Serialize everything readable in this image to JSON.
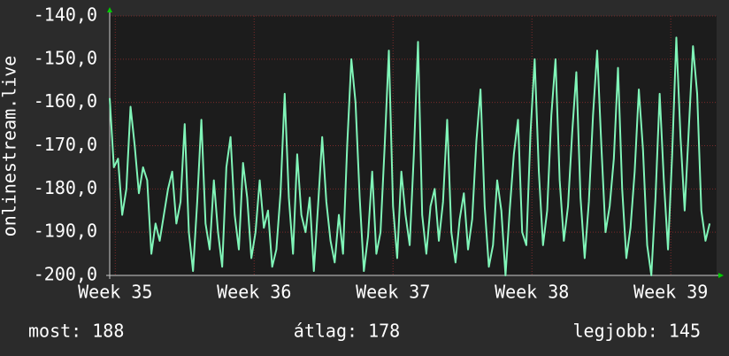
{
  "chart_data": {
    "type": "line",
    "y_label": "onlinestream.live",
    "x": [
      34.96,
      34.99,
      35.02,
      35.05,
      35.08,
      35.11,
      35.14,
      35.17,
      35.2,
      35.23,
      35.26,
      35.29,
      35.32,
      35.35,
      35.38,
      35.41,
      35.44,
      35.47,
      35.5,
      35.53,
      35.56,
      35.59,
      35.62,
      35.65,
      35.68,
      35.71,
      35.74,
      35.77,
      35.8,
      35.83,
      35.86,
      35.89,
      35.92,
      35.95,
      35.98,
      36.01,
      36.04,
      36.07,
      36.1,
      36.13,
      36.16,
      36.19,
      36.22,
      36.25,
      36.28,
      36.31,
      36.34,
      36.37,
      36.4,
      36.43,
      36.46,
      36.49,
      36.52,
      36.55,
      36.58,
      36.61,
      36.64,
      36.67,
      36.7,
      36.73,
      36.76,
      36.79,
      36.82,
      36.85,
      36.88,
      36.91,
      36.94,
      36.97,
      37.0,
      37.03,
      37.06,
      37.09,
      37.12,
      37.15,
      37.18,
      37.21,
      37.24,
      37.27,
      37.3,
      37.33,
      37.36,
      37.39,
      37.42,
      37.45,
      37.48,
      37.51,
      37.54,
      37.57,
      37.6,
      37.63,
      37.66,
      37.69,
      37.72,
      37.75,
      37.78,
      37.81,
      37.84,
      37.87,
      37.9,
      37.93,
      37.96,
      37.99,
      38.02,
      38.05,
      38.08,
      38.11,
      38.14,
      38.17,
      38.2,
      38.23,
      38.26,
      38.29,
      38.32,
      38.35,
      38.38,
      38.41,
      38.44,
      38.47,
      38.5,
      38.53,
      38.56,
      38.59,
      38.62,
      38.65,
      38.68,
      38.71,
      38.74,
      38.77,
      38.8,
      38.83,
      38.86,
      38.89,
      38.92,
      38.95,
      38.98,
      39.01,
      39.04,
      39.07,
      39.1,
      39.13,
      39.16,
      39.19,
      39.22,
      39.25,
      39.28
    ],
    "series": [
      {
        "name": "onlinestream.live",
        "color": "#80f5b8",
        "values": [
          -159,
          -175,
          -173,
          -186,
          -180,
          -161,
          -170,
          -181,
          -175,
          -178,
          -195,
          -188,
          -192,
          -186,
          -180,
          -176,
          -188,
          -183,
          -165,
          -190,
          -199,
          -183,
          -164,
          -188,
          -194,
          -178,
          -190,
          -198,
          -175,
          -168,
          -186,
          -194,
          -174,
          -182,
          -196,
          -190,
          -178,
          -189,
          -185,
          -198,
          -194,
          -181,
          -158,
          -182,
          -195,
          -172,
          -186,
          -190,
          -182,
          -199,
          -184,
          -168,
          -183,
          -192,
          -197,
          -186,
          -195,
          -170,
          -150,
          -160,
          -182,
          -199,
          -191,
          -176,
          -195,
          -190,
          -170,
          -148,
          -184,
          -196,
          -176,
          -186,
          -193,
          -172,
          -146,
          -186,
          -195,
          -184,
          -180,
          -192,
          -183,
          -164,
          -190,
          -197,
          -187,
          -181,
          -194,
          -187,
          -169,
          -157,
          -184,
          -198,
          -193,
          -178,
          -185,
          -200,
          -185,
          -172,
          -164,
          -190,
          -193,
          -167,
          -150,
          -176,
          -193,
          -185,
          -163,
          -150,
          -178,
          -192,
          -184,
          -167,
          -153,
          -182,
          -196,
          -183,
          -163,
          -148,
          -170,
          -190,
          -184,
          -173,
          -152,
          -180,
          -196,
          -189,
          -176,
          -157,
          -171,
          -193,
          -200,
          -182,
          -158,
          -178,
          -194,
          -172,
          -145,
          -168,
          -185,
          -166,
          -147,
          -158,
          -185,
          -192,
          -188
        ]
      }
    ],
    "xlim": [
      34.96,
      39.33
    ],
    "xticks": [
      {
        "value": 35,
        "label": "Week 35"
      },
      {
        "value": 36,
        "label": "Week 36"
      },
      {
        "value": 37,
        "label": "Week 37"
      },
      {
        "value": 38,
        "label": "Week 38"
      },
      {
        "value": 39,
        "label": "Week 39"
      }
    ],
    "ylim": [
      -200,
      -140
    ],
    "yticks": [
      {
        "value": -200,
        "label": "-200,0"
      },
      {
        "value": -190,
        "label": "-190,0"
      },
      {
        "value": -180,
        "label": "-180,0"
      },
      {
        "value": -170,
        "label": "-170,0"
      },
      {
        "value": -160,
        "label": "-160,0"
      },
      {
        "value": -150,
        "label": "-150,0"
      },
      {
        "value": -140,
        "label": "-140,0"
      }
    ],
    "grid": true
  },
  "footer": {
    "current": "most: 188",
    "average": "átlag: 178",
    "best": "legjobb: 145"
  }
}
